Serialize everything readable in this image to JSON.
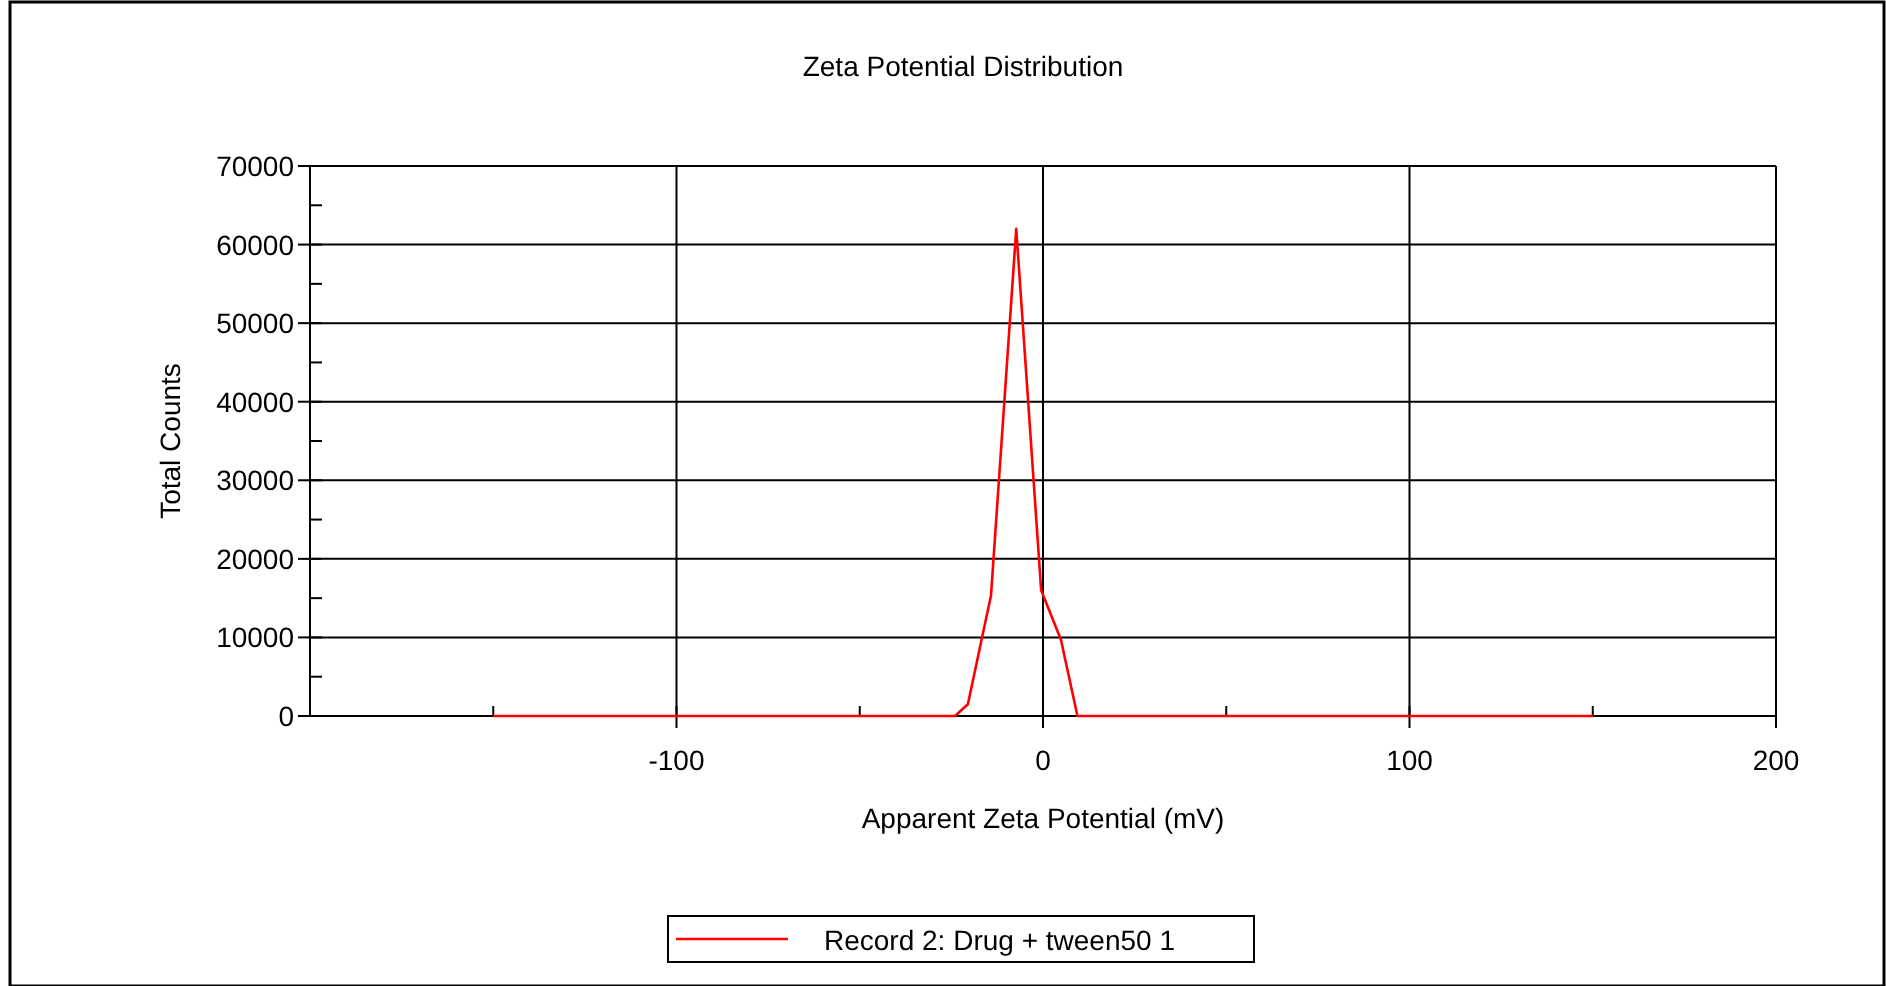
{
  "chart_data": {
    "type": "line",
    "title": "Zeta Potential Distribution",
    "xlabel": "Apparent Zeta Potential (mV)",
    "ylabel": "Total Counts",
    "series": [
      {
        "name": "Record 2: Drug + tween50 1",
        "color": "#ff0000",
        "x": [
          -150,
          -24,
          -20.5,
          -14.2,
          -7.3,
          -0.5,
          4.9,
          9.4,
          150
        ],
        "values": [
          0,
          0,
          1500,
          15300,
          62000,
          16000,
          9700,
          0,
          0
        ]
      }
    ],
    "xlim": [
      -200,
      200
    ],
    "ylim": [
      0,
      70000
    ],
    "xticks": [
      {
        "value": -150,
        "label": null
      },
      -100,
      {
        "value": -50,
        "label": null
      },
      0,
      {
        "value": 50,
        "label": null
      },
      100,
      {
        "value": 150,
        "label": null
      },
      200
    ],
    "yticks": [
      0,
      {
        "value": 5000,
        "label": null
      },
      10000,
      {
        "value": 15000,
        "label": null
      },
      20000,
      {
        "value": 25000,
        "label": null
      },
      30000,
      {
        "value": 35000,
        "label": null
      },
      40000,
      {
        "value": 45000,
        "label": null
      },
      50000,
      {
        "value": 55000,
        "label": null
      },
      60000,
      {
        "value": 65000,
        "label": null
      },
      70000
    ],
    "grid": true,
    "legend": "bottom",
    "marker": "none",
    "line_style": "solid"
  }
}
